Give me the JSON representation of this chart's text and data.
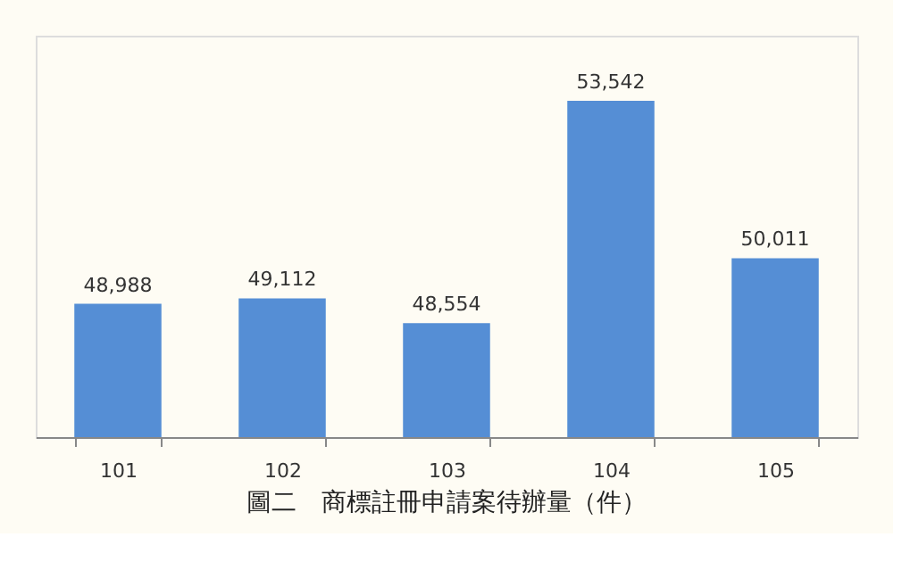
{
  "chart_data": {
    "type": "bar",
    "title": "圖二　商標註冊申請案待辦量（件）",
    "categories": [
      "101",
      "102",
      "103",
      "104",
      "105"
    ],
    "values": [
      48988,
      49112,
      48554,
      53542,
      50011
    ],
    "color": "#558ed5",
    "value_labels": [
      "48,988",
      "49,112",
      "48,554",
      "53,542",
      "50,011"
    ],
    "ylim": [
      46000,
      55000
    ],
    "tick_labels": "x",
    "grid": false
  }
}
